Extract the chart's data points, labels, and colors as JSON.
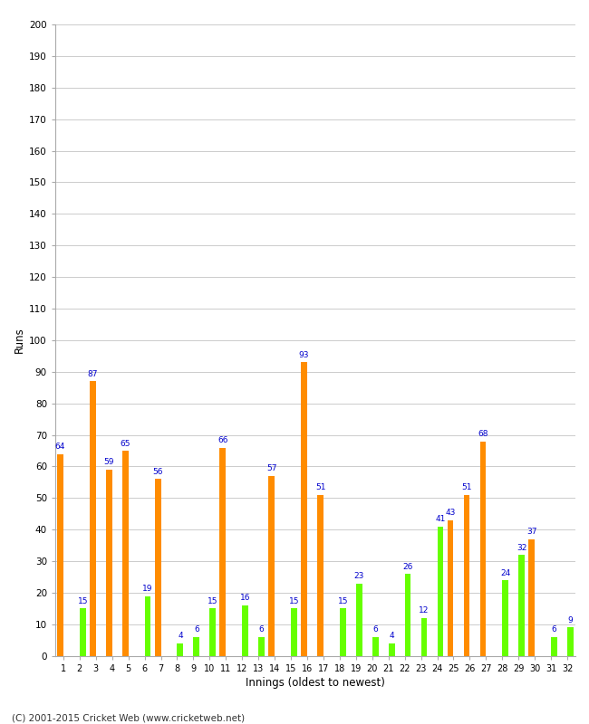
{
  "xlabel": "Innings (oldest to newest)",
  "ylabel": "Runs",
  "ylim": [
    0,
    200
  ],
  "yticks": [
    0,
    10,
    20,
    30,
    40,
    50,
    60,
    70,
    80,
    90,
    100,
    110,
    120,
    130,
    140,
    150,
    160,
    170,
    180,
    190,
    200
  ],
  "innings": [
    1,
    2,
    3,
    4,
    5,
    6,
    7,
    8,
    9,
    10,
    11,
    12,
    13,
    14,
    15,
    16,
    17,
    18,
    19,
    20,
    21,
    22,
    23,
    24,
    25,
    26,
    27,
    28,
    29,
    30,
    31,
    32
  ],
  "orange_values": [
    64,
    0,
    87,
    59,
    65,
    0,
    56,
    0,
    0,
    0,
    66,
    0,
    0,
    57,
    0,
    93,
    51,
    0,
    0,
    0,
    0,
    0,
    0,
    0,
    43,
    51,
    68,
    0,
    0,
    37,
    0,
    0
  ],
  "green_values": [
    0,
    15,
    0,
    0,
    0,
    19,
    0,
    4,
    6,
    15,
    0,
    16,
    6,
    0,
    15,
    0,
    0,
    15,
    23,
    6,
    4,
    26,
    12,
    41,
    0,
    0,
    0,
    24,
    32,
    0,
    6,
    9
  ],
  "orange_labels": [
    64,
    null,
    87,
    59,
    65,
    null,
    56,
    null,
    null,
    null,
    66,
    null,
    null,
    57,
    null,
    93,
    51,
    null,
    null,
    null,
    null,
    null,
    null,
    null,
    43,
    51,
    68,
    null,
    null,
    37,
    null,
    null
  ],
  "green_labels": [
    null,
    15,
    null,
    null,
    null,
    19,
    null,
    4,
    6,
    15,
    null,
    16,
    6,
    null,
    15,
    null,
    null,
    15,
    23,
    6,
    4,
    26,
    12,
    41,
    null,
    null,
    null,
    24,
    32,
    null,
    6,
    9
  ],
  "orange_color": "#FF8C00",
  "green_color": "#66FF00",
  "label_color": "#0000CC",
  "bg_color": "#FFFFFF",
  "grid_color": "#CCCCCC",
  "footer": "(C) 2001-2015 Cricket Web (www.cricketweb.net)",
  "bar_width": 0.38
}
